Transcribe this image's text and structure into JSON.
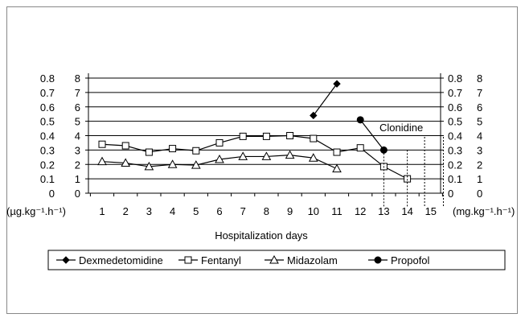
{
  "chart_data": {
    "type": "line",
    "xlabel": "Hospitalization days",
    "x": [
      1,
      2,
      3,
      4,
      5,
      6,
      7,
      8,
      9,
      10,
      11,
      12,
      13,
      14,
      15
    ],
    "x_unit_label": "(µg.kg⁻¹.h⁻¹)",
    "left_axis_inner": {
      "ticks": [
        "0",
        "1",
        "2",
        "3",
        "4",
        "5",
        "6",
        "7",
        "8"
      ],
      "ylim": [
        0,
        8
      ]
    },
    "left_axis_outer": {
      "ticks": [
        "0",
        "0.1",
        "0.2",
        "0.3",
        "0.4",
        "0.5",
        "0.6",
        "0.7",
        "0.8"
      ],
      "ylim": [
        0,
        0.8
      ]
    },
    "right_axis_inner": {
      "ticks": [
        "0",
        "0.1",
        "0.2",
        "0.3",
        "0.4",
        "0.5",
        "0.6",
        "0.7",
        "0.8"
      ],
      "ylim": [
        0,
        0.8
      ]
    },
    "right_axis_outer": {
      "ticks": [
        "0",
        "1",
        "2",
        "3",
        "4",
        "5",
        "6",
        "7",
        "8"
      ],
      "ylim": [
        0,
        8
      ],
      "unit_label": "(mg.kg⁻¹.h⁻¹)"
    },
    "grid": true,
    "legend_position": "bottom",
    "annotation": "Clonidine",
    "series": [
      {
        "name": "Dexmedetomidine",
        "marker": "diamond",
        "x": [
          10,
          11
        ],
        "values": [
          5.4,
          7.6
        ]
      },
      {
        "name": "Fentanyl",
        "marker": "square",
        "x": [
          1,
          2,
          3,
          4,
          5,
          6,
          7,
          8,
          9,
          10,
          11,
          12,
          13,
          14
        ],
        "values": [
          3.4,
          3.3,
          2.85,
          3.1,
          2.95,
          3.5,
          3.95,
          3.95,
          4.0,
          3.8,
          2.85,
          3.15,
          1.85,
          1.0
        ]
      },
      {
        "name": "Midazolam",
        "marker": "triangle",
        "x": [
          1,
          2,
          3,
          4,
          5,
          6,
          7,
          8,
          9,
          10,
          11
        ],
        "values": [
          2.2,
          2.1,
          1.85,
          2.0,
          1.95,
          2.35,
          2.55,
          2.55,
          2.65,
          2.45,
          1.7
        ]
      },
      {
        "name": "Propofol",
        "marker": "circle",
        "x": [
          12,
          13
        ],
        "values": [
          5.1,
          3.0
        ]
      }
    ]
  }
}
